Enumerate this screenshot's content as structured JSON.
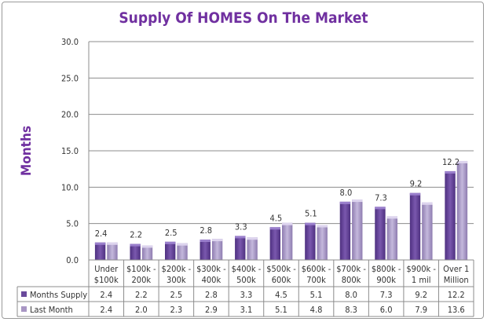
{
  "chart_data": {
    "type": "bar",
    "title": "Supply Of HOMES On The Market",
    "ylabel": "Months",
    "xlabel": "",
    "ylim": [
      0,
      30
    ],
    "yticks": [
      "0.0",
      "5.0",
      "10.0",
      "15.0",
      "20.0",
      "25.0",
      "30.0"
    ],
    "grid": true,
    "legend": "data-table",
    "categories": [
      [
        "Under",
        "$100k"
      ],
      [
        "$100k -",
        "200k"
      ],
      [
        "$200k -",
        "300k"
      ],
      [
        "$300k -",
        "400k"
      ],
      [
        "$400k -",
        "500k"
      ],
      [
        "$500k -",
        "600k"
      ],
      [
        "$600k -",
        "700k"
      ],
      [
        "$700k -",
        "800k"
      ],
      [
        "$800k -",
        "900k"
      ],
      [
        "$900k -",
        "1 mil"
      ],
      [
        "Over 1",
        "Million"
      ]
    ],
    "series": [
      {
        "name": "Months Supply",
        "color": "#6a4a9c",
        "values": [
          2.4,
          2.2,
          2.5,
          2.8,
          3.3,
          4.5,
          5.1,
          8.0,
          7.3,
          9.2,
          12.2
        ],
        "labels": [
          "2.4",
          "2.2",
          "2.5",
          "2.8",
          "3.3",
          "4.5",
          "5.1",
          "8.0",
          "7.3",
          "9.2",
          "12.2"
        ]
      },
      {
        "name": "Last Month",
        "color": "#a896c4",
        "values": [
          2.4,
          2.0,
          2.3,
          2.9,
          3.1,
          5.1,
          4.8,
          8.3,
          6.0,
          7.9,
          13.6
        ],
        "labels": [
          "2.4",
          "2.0",
          "2.3",
          "2.9",
          "3.1",
          "5.1",
          "4.8",
          "8.3",
          "6.0",
          "7.9",
          "13.6"
        ]
      }
    ],
    "title_color": "#7030a0"
  }
}
